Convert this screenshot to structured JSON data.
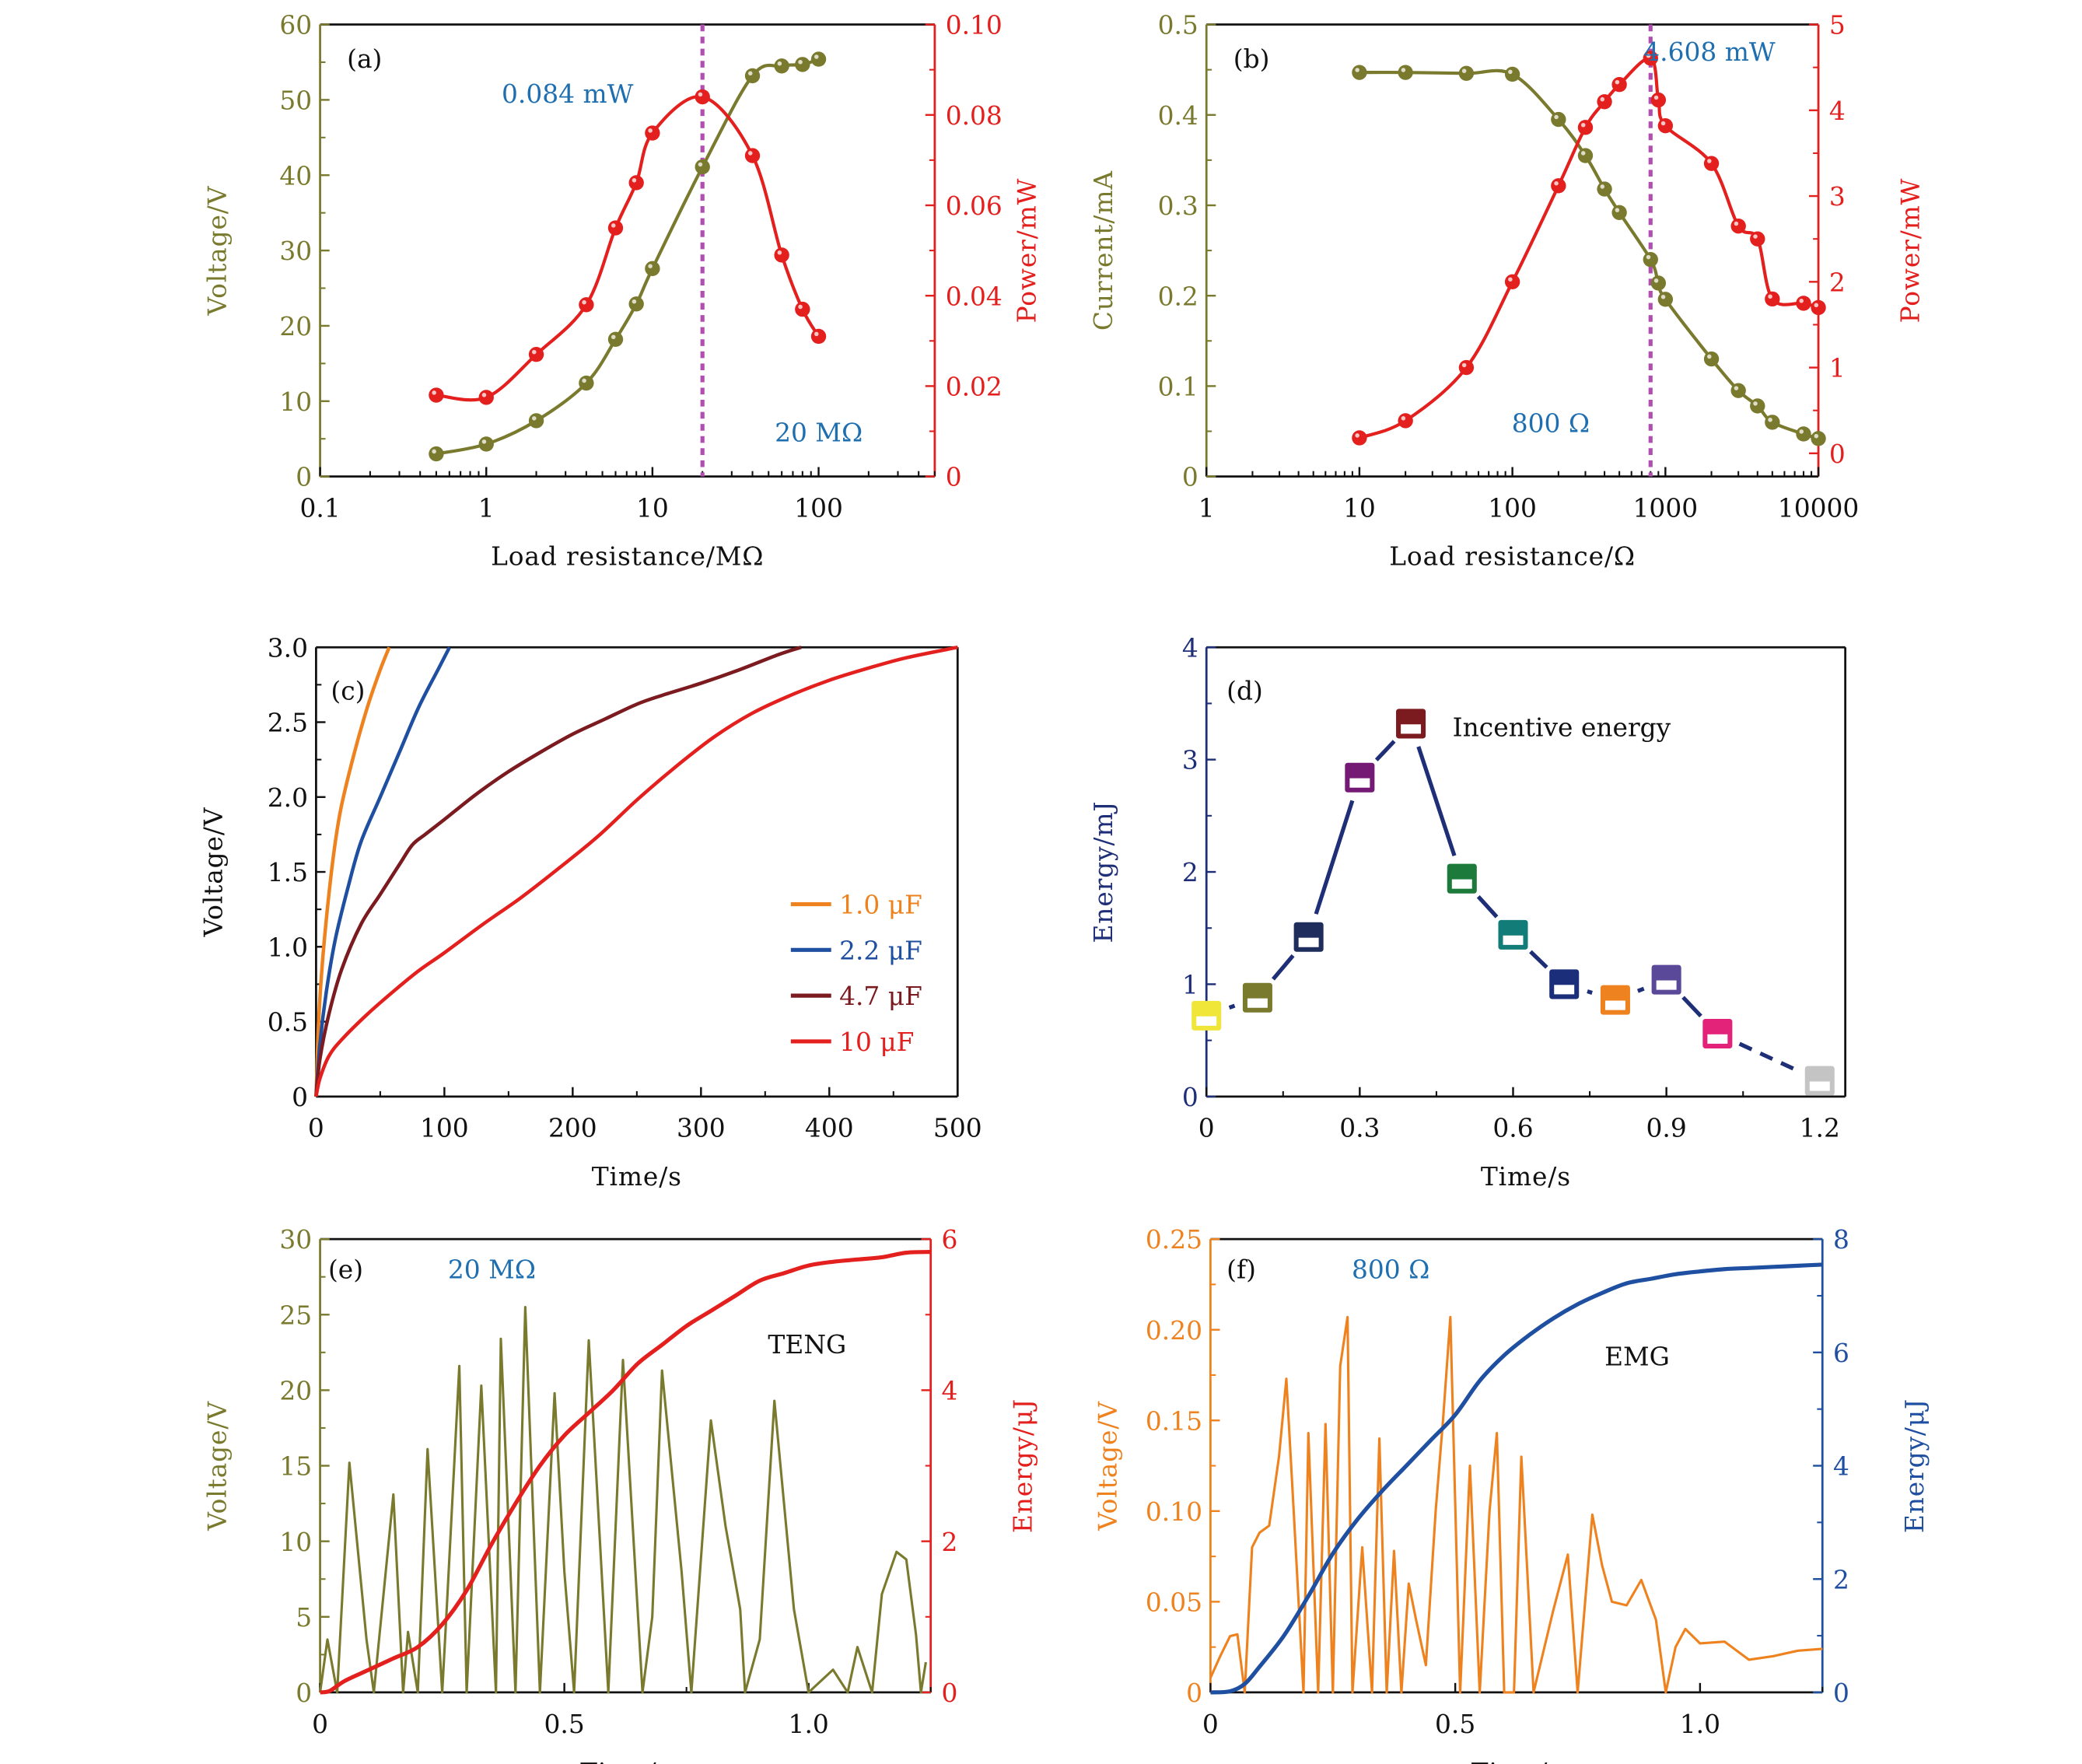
{
  "chart_data": [
    {
      "id": "a",
      "type": "line",
      "panel_label": "(a)",
      "xscale": "log",
      "xlabel": "Load resistance/MΩ",
      "xlim": [
        0.1,
        500
      ],
      "xticks": [
        0.1,
        1,
        10,
        100
      ],
      "xtick_labels": [
        "0.1",
        "1",
        "10",
        "100"
      ],
      "ylabel": "Voltage/V",
      "ylim": [
        0,
        60
      ],
      "yticks": [
        0,
        10,
        20,
        30,
        40,
        50,
        60
      ],
      "y2label": "Power/mW",
      "y2lim": [
        0,
        0.1
      ],
      "y2ticks": [
        0,
        0.02,
        0.04,
        0.06,
        0.08,
        0.1
      ],
      "y2tick_labels": [
        "0",
        "0.02",
        "0.04",
        "0.06",
        "0.08",
        "0.10"
      ],
      "x": [
        0.5,
        1,
        2,
        4,
        6,
        8,
        10,
        20,
        40,
        60,
        80,
        100
      ],
      "series": [
        {
          "name": "Voltage",
          "axis": "left",
          "color": "#7a7a2e",
          "values": [
            3.0,
            4.3,
            7.4,
            12.4,
            18.2,
            22.9,
            27.6,
            41.1,
            53.2,
            54.5,
            54.7,
            55.4
          ]
        },
        {
          "name": "Power",
          "axis": "right",
          "color": "#e3201e",
          "values": [
            0.018,
            0.0175,
            0.027,
            0.038,
            0.055,
            0.065,
            0.076,
            0.084,
            0.071,
            0.049,
            0.037,
            0.031
          ]
        }
      ],
      "marker_line": {
        "x": 20,
        "color": "#b04fb0"
      },
      "annotations": [
        {
          "text": "0.084  mW",
          "color": "#1f6fb0"
        },
        {
          "text": "20 MΩ",
          "color": "#1f6fb0"
        }
      ]
    },
    {
      "id": "b",
      "type": "line",
      "panel_label": "(b)",
      "xscale": "log",
      "xlabel": "Load resistance/Ω",
      "xlim": [
        1,
        10000
      ],
      "xticks": [
        1,
        10,
        100,
        1000,
        10000
      ],
      "xtick_labels": [
        "1",
        "10",
        "100",
        "1000",
        "10000"
      ],
      "ylabel": "Current/mA",
      "ylim": [
        0,
        0.5
      ],
      "yticks": [
        0,
        0.1,
        0.2,
        0.3,
        0.4,
        0.5
      ],
      "ytick_labels": [
        "0",
        "0.1",
        "0.2",
        "0.3",
        "0.4",
        "0.5"
      ],
      "y2label": "Power/mW",
      "y2lim": [
        -0.27,
        5
      ],
      "y2ticks": [
        0,
        1,
        2,
        3,
        4,
        5
      ],
      "y2tick_labels": [
        "0",
        "1",
        "2",
        "3",
        "4",
        "5"
      ],
      "x": [
        10,
        20,
        50,
        100,
        200,
        300,
        400,
        500,
        800,
        900,
        1000,
        2000,
        3000,
        4000,
        5000,
        8000,
        10000
      ],
      "series": [
        {
          "name": "Current",
          "axis": "left",
          "color": "#7a7a2e",
          "values": [
            0.447,
            0.447,
            0.446,
            0.445,
            0.395,
            0.355,
            0.318,
            0.292,
            0.24,
            0.214,
            0.196,
            0.13,
            0.095,
            0.078,
            0.06,
            0.047,
            0.042
          ]
        },
        {
          "name": "Power",
          "axis": "right",
          "color": "#e3201e",
          "values": [
            0.18,
            0.38,
            1.0,
            2.0,
            3.12,
            3.8,
            4.1,
            4.3,
            4.608,
            4.12,
            3.82,
            3.38,
            2.65,
            2.5,
            1.8,
            1.75,
            1.7
          ]
        }
      ],
      "marker_line": {
        "x": 800,
        "color": "#b04fb0"
      },
      "annotations": [
        {
          "text": "4.608  mW",
          "color": "#1f6fb0"
        },
        {
          "text": "800  Ω",
          "color": "#1f6fb0"
        }
      ]
    },
    {
      "id": "c",
      "type": "line",
      "panel_label": "(c)",
      "xlabel": "Time/s",
      "xlim": [
        0,
        500
      ],
      "xticks": [
        0,
        100,
        200,
        300,
        400,
        500
      ],
      "ylabel": "Voltage/V",
      "ylim": [
        0,
        3.0
      ],
      "yticks": [
        0,
        0.5,
        1.0,
        1.5,
        2.0,
        2.5,
        3.0
      ],
      "ytick_labels": [
        "0",
        "0.5",
        "1.0",
        "1.5",
        "2.0",
        "2.5",
        "3.0"
      ],
      "legend_position": "lower-right",
      "series": [
        {
          "name": "1.0 μF",
          "color": "#ee821e",
          "x": [
            0,
            2,
            5,
            10,
            15,
            20,
            30,
            40,
            50,
            57
          ],
          "values": [
            0,
            0.5,
            0.9,
            1.35,
            1.7,
            1.95,
            2.3,
            2.6,
            2.85,
            3.0
          ]
        },
        {
          "name": "2.2 μF",
          "color": "#1f4fa0",
          "x": [
            0,
            3,
            8,
            15,
            25,
            35,
            50,
            65,
            80,
            95,
            104
          ],
          "values": [
            0,
            0.35,
            0.7,
            1.05,
            1.4,
            1.7,
            2.0,
            2.3,
            2.6,
            2.85,
            3.0
          ]
        },
        {
          "name": "4.7 μF",
          "color": "#7b1a1f",
          "x": [
            0,
            3,
            10,
            20,
            35,
            50,
            65,
            75,
            85,
            100,
            125,
            150,
            175,
            200,
            225,
            250,
            270,
            300,
            330,
            360,
            378
          ],
          "values": [
            0,
            0.25,
            0.55,
            0.85,
            1.15,
            1.35,
            1.55,
            1.68,
            1.75,
            1.85,
            2.02,
            2.17,
            2.3,
            2.42,
            2.52,
            2.62,
            2.68,
            2.76,
            2.85,
            2.95,
            3.0
          ]
        },
        {
          "name": "10 μF",
          "color": "#e3201e",
          "x": [
            0,
            3,
            10,
            20,
            40,
            60,
            80,
            100,
            130,
            160,
            190,
            220,
            250,
            280,
            310,
            340,
            370,
            400,
            430,
            460,
            500
          ],
          "values": [
            0,
            0.12,
            0.27,
            0.38,
            0.55,
            0.7,
            0.84,
            0.96,
            1.15,
            1.33,
            1.53,
            1.74,
            1.98,
            2.2,
            2.4,
            2.56,
            2.68,
            2.78,
            2.86,
            2.93,
            3.0
          ]
        }
      ]
    },
    {
      "id": "d",
      "type": "line",
      "panel_label": "(d)",
      "xlabel": "Time/s",
      "xlim": [
        0,
        1.25
      ],
      "xticks": [
        0,
        0.3,
        0.6,
        0.9,
        1.2
      ],
      "xtick_labels": [
        "0",
        "0.3",
        "0.6",
        "0.9",
        "1.2"
      ],
      "ylabel": "Energy/mJ",
      "ylim": [
        0,
        4
      ],
      "yticks": [
        0,
        1,
        2,
        3,
        4
      ],
      "line_color": "#1f2f77",
      "legend": "Incentive energy",
      "x": [
        0,
        0.1,
        0.2,
        0.3,
        0.4,
        0.5,
        0.6,
        0.7,
        0.8,
        0.9,
        1.0,
        1.2
      ],
      "values": [
        0.72,
        0.88,
        1.42,
        2.84,
        3.32,
        1.94,
        1.44,
        1.0,
        0.86,
        1.04,
        0.56,
        0.14
      ],
      "marker_colors": [
        "#f0e63a",
        "#7a7a2e",
        "#1f2d5c",
        "#741a75",
        "#7b1a1f",
        "#1c7a3a",
        "#127c78",
        "#1a2e7a",
        "#ee821e",
        "#5a4898",
        "#e3237a",
        "#c4c4c4"
      ],
      "dashed_segments": [
        0,
        7,
        8,
        10
      ]
    },
    {
      "id": "e",
      "type": "line",
      "panel_label": "(e)",
      "xlabel": "Time/s",
      "xlim": [
        0,
        1.25
      ],
      "xticks": [
        0,
        0.5,
        1.0
      ],
      "xtick_labels": [
        "0",
        "0.5",
        "1.0"
      ],
      "ylabel": "Voltage/V",
      "ylim": [
        0,
        30
      ],
      "yticks": [
        0,
        5,
        10,
        15,
        20,
        25,
        30
      ],
      "y2label": "Energy/μJ",
      "y2lim": [
        0,
        6
      ],
      "y2ticks": [
        0,
        2,
        4,
        6
      ],
      "annotations": [
        {
          "text": "20 MΩ",
          "color": "#1f6fb0"
        },
        {
          "text": "TENG",
          "color": "#111111"
        }
      ],
      "series": [
        {
          "name": "Voltage",
          "axis": "left",
          "color": "#7a7a2e",
          "peaks": [
            [
              0.015,
              3.5
            ],
            [
              0.06,
              15.2
            ],
            [
              0.095,
              3.5
            ],
            [
              0.15,
              13.1
            ],
            [
              0.18,
              4
            ],
            [
              0.22,
              16.1
            ],
            [
              0.26,
              6
            ],
            [
              0.285,
              21.6
            ],
            [
              0.33,
              20.3
            ],
            [
              0.37,
              23.4
            ],
            [
              0.42,
              25.5
            ],
            [
              0.48,
              19.8
            ],
            [
              0.5,
              8
            ],
            [
              0.55,
              23.3
            ],
            [
              0.62,
              22.0
            ],
            [
              0.68,
              5
            ],
            [
              0.7,
              21.3
            ],
            [
              0.74,
              8
            ],
            [
              0.8,
              18.0
            ],
            [
              0.83,
              11
            ],
            [
              0.86,
              5.5
            ],
            [
              0.9,
              3.5
            ],
            [
              0.93,
              19.3
            ],
            [
              0.97,
              5.5
            ],
            [
              1.05,
              1.5
            ],
            [
              1.1,
              3
            ],
            [
              1.15,
              6.5
            ],
            [
              1.18,
              9.3
            ],
            [
              1.2,
              8.8
            ],
            [
              1.22,
              3.8
            ],
            [
              1.24,
              2
            ]
          ],
          "troughs": [
            [
              0.0,
              0
            ],
            [
              0.035,
              0
            ],
            [
              0.11,
              0
            ],
            [
              0.17,
              0
            ],
            [
              0.2,
              0
            ],
            [
              0.25,
              0
            ],
            [
              0.3,
              0
            ],
            [
              0.36,
              0
            ],
            [
              0.4,
              0
            ],
            [
              0.45,
              0
            ],
            [
              0.52,
              0
            ],
            [
              0.59,
              0
            ],
            [
              0.66,
              0
            ],
            [
              0.76,
              0
            ],
            [
              0.87,
              0
            ],
            [
              1.0,
              0
            ],
            [
              1.08,
              0
            ],
            [
              1.13,
              0
            ],
            [
              1.23,
              0
            ]
          ]
        },
        {
          "name": "Energy",
          "axis": "right",
          "color": "#e3201e",
          "x": [
            0,
            0.02,
            0.05,
            0.1,
            0.15,
            0.2,
            0.25,
            0.3,
            0.35,
            0.4,
            0.45,
            0.5,
            0.55,
            0.6,
            0.65,
            0.7,
            0.75,
            0.8,
            0.85,
            0.9,
            0.95,
            1.0,
            1.05,
            1.1,
            1.15,
            1.2,
            1.25
          ],
          "values": [
            0,
            0.02,
            0.15,
            0.3,
            0.45,
            0.6,
            0.9,
            1.35,
            1.95,
            2.5,
            3.0,
            3.4,
            3.7,
            4.0,
            4.35,
            4.6,
            4.85,
            5.05,
            5.25,
            5.45,
            5.55,
            5.65,
            5.7,
            5.73,
            5.76,
            5.82,
            5.83
          ]
        }
      ]
    },
    {
      "id": "f",
      "type": "line",
      "panel_label": "(f)",
      "xlabel": "Time/s",
      "xlim": [
        0,
        1.25
      ],
      "xticks": [
        0,
        0.5,
        1.0
      ],
      "xtick_labels": [
        "0",
        "0.5",
        "1.0"
      ],
      "ylabel": "Voltage/V",
      "ylim": [
        0,
        0.25
      ],
      "yticks": [
        0,
        0.05,
        0.1,
        0.15,
        0.2,
        0.25
      ],
      "ytick_labels": [
        "0",
        "0.05",
        "0.10",
        "0.15",
        "0.20",
        "0.25"
      ],
      "y2label": "Energy/μJ",
      "y2lim": [
        0,
        8
      ],
      "y2ticks": [
        0,
        2,
        4,
        6,
        8
      ],
      "annotations": [
        {
          "text": "800  Ω",
          "color": "#1f6fb0"
        },
        {
          "text": "EMG",
          "color": "#111111"
        }
      ],
      "series": [
        {
          "name": "Voltage",
          "axis": "left",
          "color": "#ee821e",
          "x": [
            0,
            0.02,
            0.04,
            0.055,
            0.07,
            0.085,
            0.1,
            0.12,
            0.14,
            0.155,
            0.17,
            0.19,
            0.2,
            0.22,
            0.235,
            0.25,
            0.265,
            0.28,
            0.29,
            0.31,
            0.33,
            0.345,
            0.36,
            0.375,
            0.39,
            0.405,
            0.42,
            0.44,
            0.46,
            0.475,
            0.49,
            0.51,
            0.53,
            0.55,
            0.57,
            0.585,
            0.6,
            0.62,
            0.635,
            0.66,
            0.7,
            0.73,
            0.75,
            0.78,
            0.8,
            0.82,
            0.85,
            0.88,
            0.91,
            0.93,
            0.95,
            0.97,
            1.0,
            1.05,
            1.1,
            1.15,
            1.2,
            1.25
          ],
          "values": [
            0.008,
            0.02,
            0.031,
            0.032,
            0.0,
            0.08,
            0.088,
            0.092,
            0.13,
            0.173,
            0.1,
            0.0,
            0.143,
            0.0,
            0.148,
            0.0,
            0.18,
            0.207,
            0.0,
            0.08,
            0.0,
            0.14,
            0.0,
            0.078,
            0.0,
            0.06,
            0.04,
            0.015,
            0.1,
            0.15,
            0.207,
            0.0,
            0.125,
            0.0,
            0.1,
            0.143,
            0.0,
            0.0,
            0.13,
            0.0,
            0.045,
            0.076,
            0.0,
            0.098,
            0.07,
            0.05,
            0.048,
            0.062,
            0.04,
            0.0,
            0.025,
            0.035,
            0.027,
            0.028,
            0.018,
            0.02,
            0.023,
            0.024
          ]
        },
        {
          "name": "Energy",
          "axis": "right",
          "color": "#1f4fa0",
          "x": [
            0,
            0.04,
            0.07,
            0.1,
            0.15,
            0.2,
            0.25,
            0.3,
            0.35,
            0.4,
            0.45,
            0.5,
            0.55,
            0.6,
            0.65,
            0.7,
            0.75,
            0.8,
            0.85,
            0.9,
            0.95,
            1.0,
            1.05,
            1.1,
            1.15,
            1.2,
            1.25
          ],
          "values": [
            0,
            0.02,
            0.15,
            0.45,
            1.0,
            1.7,
            2.45,
            3.05,
            3.55,
            4.0,
            4.45,
            4.9,
            5.5,
            5.95,
            6.3,
            6.6,
            6.85,
            7.05,
            7.22,
            7.3,
            7.38,
            7.43,
            7.47,
            7.49,
            7.51,
            7.53,
            7.55
          ]
        }
      ]
    }
  ]
}
